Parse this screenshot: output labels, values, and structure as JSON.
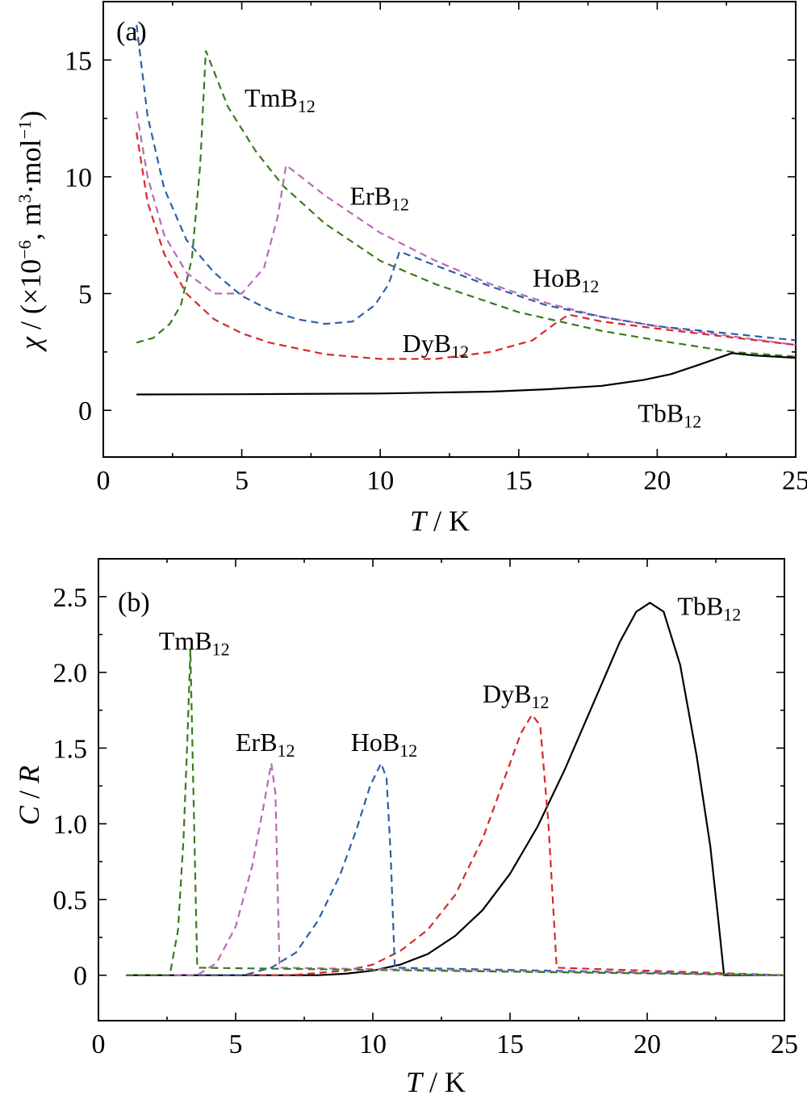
{
  "chart_data": [
    {
      "type": "line",
      "panel_label": "(a)",
      "xlabel": "T / K",
      "ylabel": "χ / (×10⁻⁶, m³·mol⁻¹)",
      "xlim": [
        0,
        25
      ],
      "ylim": [
        -2,
        17.5
      ],
      "xticks": [
        0,
        5,
        10,
        15,
        20,
        25
      ],
      "yticks": [
        0,
        5,
        10,
        15
      ],
      "grid": false,
      "series": [
        {
          "name": "TmB12",
          "color": "#3a7a1e",
          "dash": true,
          "x": [
            1.2,
            1.8,
            2.4,
            2.8,
            3.2,
            3.5,
            3.7,
            4.5,
            5.5,
            6.5,
            8,
            10,
            12,
            15,
            18,
            20,
            22.7,
            25
          ],
          "y": [
            2.9,
            3.1,
            3.7,
            4.5,
            6.5,
            10.5,
            15.4,
            13.0,
            11.1,
            9.6,
            8.0,
            6.4,
            5.4,
            4.2,
            3.4,
            3.0,
            2.5,
            2.3
          ]
        },
        {
          "name": "ErB12",
          "color": "#b76bb7",
          "dash": true,
          "x": [
            1.2,
            1.6,
            2.2,
            3,
            4,
            5,
            5.8,
            6.3,
            6.6,
            8,
            10,
            12,
            14,
            16,
            18,
            20,
            25
          ],
          "y": [
            12.8,
            10.0,
            7.5,
            5.9,
            5.0,
            5.0,
            6.1,
            8.3,
            10.5,
            9.2,
            7.6,
            6.4,
            5.4,
            4.6,
            4.0,
            3.6,
            2.8
          ]
        },
        {
          "name": "HoB12",
          "color": "#2e5fa8",
          "dash": true,
          "x": [
            1.2,
            1.6,
            2.2,
            3,
            4,
            5,
            6,
            7,
            8,
            9,
            9.8,
            10.3,
            10.7,
            12,
            14,
            16,
            18,
            20,
            25
          ],
          "y": [
            16.5,
            12.6,
            9.5,
            7.3,
            5.9,
            4.9,
            4.3,
            3.9,
            3.7,
            3.8,
            4.5,
            5.4,
            6.8,
            6.2,
            5.3,
            4.5,
            4.0,
            3.6,
            3.0
          ]
        },
        {
          "name": "DyB12",
          "color": "#d42a2a",
          "dash": true,
          "x": [
            1.2,
            1.6,
            2.2,
            3,
            4,
            5,
            6,
            8,
            10,
            12,
            14,
            15.5,
            16.3,
            16.8,
            18,
            20,
            25
          ],
          "y": [
            11.9,
            8.9,
            6.7,
            5.0,
            3.9,
            3.3,
            2.9,
            2.4,
            2.2,
            2.2,
            2.5,
            3.0,
            3.7,
            4.1,
            3.8,
            3.5,
            2.8
          ]
        },
        {
          "name": "TbB12",
          "color": "#000000",
          "dash": false,
          "x": [
            1.2,
            5,
            10,
            14,
            16,
            18,
            19.5,
            20.5,
            21.5,
            22.7,
            23.5,
            25
          ],
          "y": [
            0.68,
            0.69,
            0.72,
            0.8,
            0.9,
            1.05,
            1.3,
            1.55,
            1.95,
            2.45,
            2.35,
            2.25
          ]
        }
      ],
      "labels": [
        {
          "base": "TmB",
          "sub": "12",
          "x": 5.1,
          "y": 13.0
        },
        {
          "base": "ErB",
          "sub": "12",
          "x": 8.9,
          "y": 8.8
        },
        {
          "base": "HoB",
          "sub": "12",
          "x": 15.5,
          "y": 5.3
        },
        {
          "base": "DyB",
          "sub": "12",
          "x": 10.8,
          "y": 2.5
        },
        {
          "base": "TbB",
          "sub": "12",
          "x": 19.3,
          "y": -0.5
        }
      ]
    },
    {
      "type": "line",
      "panel_label": "(b)",
      "xlabel": "T / K",
      "ylabel": "C / R",
      "xlim": [
        0,
        25
      ],
      "ylim": [
        -0.3,
        2.75
      ],
      "xticks": [
        0,
        5,
        10,
        15,
        20,
        25
      ],
      "yticks": [
        0,
        0.5,
        1.0,
        1.5,
        2.0,
        2.5
      ],
      "ytick_labels": [
        "0",
        "0.5",
        "1.0",
        "1.5",
        "2.0",
        "2.5"
      ],
      "grid": false,
      "series": [
        {
          "name": "TbB12",
          "color": "#000000",
          "dash": false,
          "x": [
            1,
            8,
            9,
            10,
            11,
            12,
            13,
            14,
            15,
            16,
            17,
            18,
            19,
            19.6,
            20.1,
            20.6,
            21.2,
            21.8,
            22.3,
            22.6,
            22.8,
            25
          ],
          "y": [
            0,
            0,
            0.01,
            0.03,
            0.07,
            0.14,
            0.26,
            0.43,
            0.67,
            0.98,
            1.36,
            1.78,
            2.2,
            2.4,
            2.46,
            2.4,
            2.05,
            1.45,
            0.85,
            0.35,
            0,
            0
          ]
        },
        {
          "name": "DyB12",
          "color": "#d42a2a",
          "dash": true,
          "x": [
            1,
            7,
            9,
            10,
            11,
            12,
            13,
            14,
            14.8,
            15.4,
            15.8,
            16.1,
            16.4,
            16.7,
            25
          ],
          "y": [
            0,
            0,
            0.03,
            0.07,
            0.16,
            0.3,
            0.53,
            0.9,
            1.3,
            1.6,
            1.72,
            1.65,
            1.0,
            0.05,
            0
          ]
        },
        {
          "name": "HoB12",
          "color": "#2e5fa8",
          "dash": true,
          "x": [
            1,
            5.3,
            6.3,
            7.2,
            8,
            8.8,
            9.4,
            9.9,
            10.3,
            10.5,
            10.65,
            10.8,
            25
          ],
          "y": [
            0,
            0,
            0.05,
            0.15,
            0.36,
            0.66,
            0.96,
            1.25,
            1.4,
            1.3,
            0.8,
            0.05,
            0
          ]
        },
        {
          "name": "ErB12",
          "color": "#b76bb7",
          "dash": true,
          "x": [
            1,
            3.6,
            4.3,
            5.0,
            5.6,
            6.0,
            6.3,
            6.45,
            6.6,
            25
          ],
          "y": [
            0,
            0,
            0.08,
            0.32,
            0.72,
            1.1,
            1.4,
            1.2,
            0.05,
            0
          ]
        },
        {
          "name": "TmB12",
          "color": "#3a7a1e",
          "dash": true,
          "x": [
            1,
            2.6,
            2.9,
            3.1,
            3.25,
            3.35,
            3.45,
            3.6,
            25
          ],
          "y": [
            0,
            0,
            0.3,
            0.9,
            1.6,
            2.15,
            1.3,
            0.05,
            0
          ]
        }
      ],
      "labels": [
        {
          "base": "TmB",
          "sub": "12",
          "x": 2.2,
          "y": 2.15
        },
        {
          "base": "ErB",
          "sub": "12",
          "x": 5.0,
          "y": 1.48
        },
        {
          "base": "HoB",
          "sub": "12",
          "x": 9.2,
          "y": 1.48
        },
        {
          "base": "DyB",
          "sub": "12",
          "x": 14.0,
          "y": 1.8
        },
        {
          "base": "TbB",
          "sub": "12",
          "x": 21.1,
          "y": 2.38
        }
      ]
    }
  ]
}
